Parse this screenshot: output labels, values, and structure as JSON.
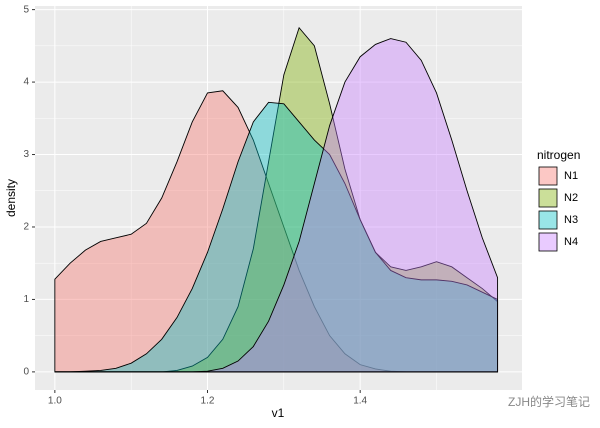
{
  "chart_data": {
    "type": "area",
    "x_label": "v1",
    "y_label": "density",
    "legend_title": "nitrogen",
    "legend_position": "right",
    "watermark": "ZJH的学习笔记",
    "grid": true,
    "alpha": 0.4,
    "xlim": [
      0.974,
      1.612
    ],
    "ylim": [
      -0.25,
      5.05
    ],
    "xticks": [
      {
        "value": 1.0,
        "label": "1.0"
      },
      {
        "value": 1.2,
        "label": "1.2"
      },
      {
        "value": 1.4,
        "label": "1.4"
      }
    ],
    "yticks": [
      0,
      1,
      2,
      3,
      4,
      5
    ],
    "x": [
      1.0,
      1.02,
      1.04,
      1.06,
      1.08,
      1.1,
      1.12,
      1.14,
      1.16,
      1.18,
      1.2,
      1.22,
      1.24,
      1.26,
      1.28,
      1.3,
      1.32,
      1.34,
      1.36,
      1.38,
      1.4,
      1.42,
      1.44,
      1.46,
      1.48,
      1.5,
      1.52,
      1.54,
      1.56,
      1.58
    ],
    "series": [
      {
        "name": "N1",
        "color": "#F8766D",
        "values": [
          1.28,
          1.5,
          1.68,
          1.8,
          1.85,
          1.9,
          2.05,
          2.4,
          2.9,
          3.45,
          3.85,
          3.88,
          3.65,
          3.2,
          2.6,
          2.0,
          1.4,
          0.9,
          0.5,
          0.25,
          0.1,
          0.04,
          0.01,
          0,
          0,
          0,
          0,
          0,
          0,
          0
        ]
      },
      {
        "name": "N2",
        "color": "#7CAE00",
        "values": [
          0,
          0,
          0,
          0,
          0,
          0,
          0,
          0,
          0.02,
          0.08,
          0.2,
          0.45,
          0.9,
          1.7,
          2.9,
          4.1,
          4.75,
          4.5,
          3.7,
          2.8,
          2.1,
          1.65,
          1.45,
          1.4,
          1.45,
          1.52,
          1.45,
          1.3,
          1.15,
          0.97
        ]
      },
      {
        "name": "N3",
        "color": "#00BFC4",
        "values": [
          0,
          0,
          0.01,
          0.02,
          0.05,
          0.12,
          0.25,
          0.45,
          0.75,
          1.15,
          1.65,
          2.25,
          2.9,
          3.45,
          3.72,
          3.7,
          3.45,
          3.2,
          3.0,
          2.6,
          2.1,
          1.65,
          1.4,
          1.3,
          1.27,
          1.27,
          1.25,
          1.2,
          1.1,
          1.0
        ]
      },
      {
        "name": "N4",
        "color": "#C77CFF",
        "values": [
          0,
          0,
          0,
          0,
          0,
          0,
          0,
          0,
          0,
          0,
          0.01,
          0.05,
          0.15,
          0.35,
          0.7,
          1.2,
          1.8,
          2.6,
          3.4,
          4.0,
          4.35,
          4.52,
          4.6,
          4.55,
          4.3,
          3.85,
          3.2,
          2.5,
          1.85,
          1.3
        ]
      }
    ]
  }
}
